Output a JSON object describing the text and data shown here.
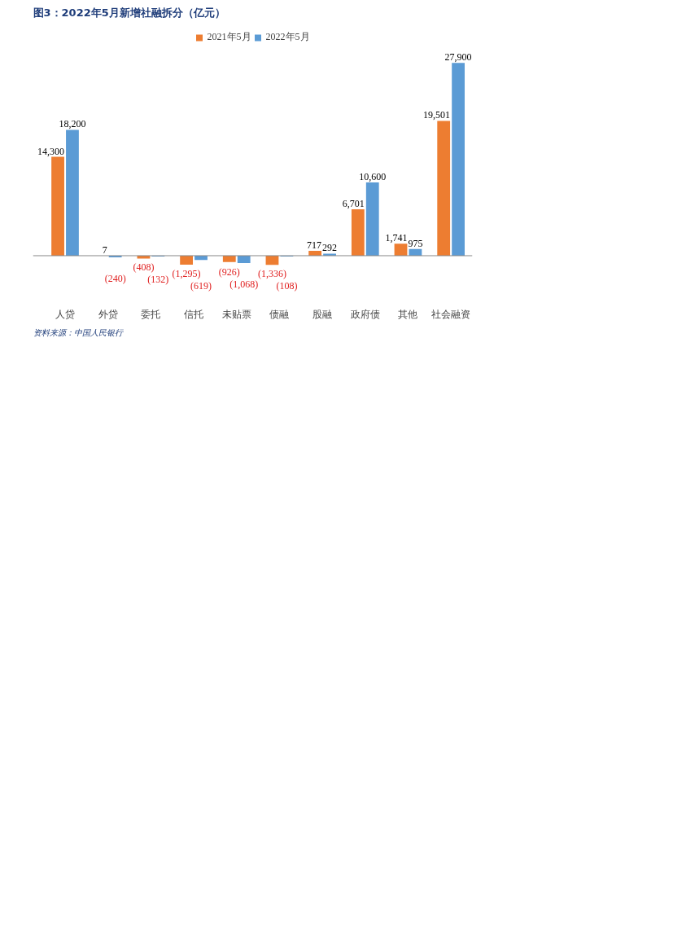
{
  "chart_data": {
    "type": "bar",
    "title": "图3：2022年5月新增社融拆分（亿元）",
    "categories": [
      "人贷",
      "外贷",
      "委托",
      "信托",
      "未贴票",
      "债融",
      "股融",
      "政府债",
      "其他",
      "社会融资"
    ],
    "series": [
      {
        "name": "2021年5月",
        "color": "#ed7d31",
        "values": [
          14300,
          7,
          -408,
          -1295,
          -926,
          -1336,
          717,
          6701,
          1741,
          19501
        ],
        "value_labels": [
          "14,300",
          "7",
          "(408)",
          "(1,295)",
          "(926)",
          "(1,336)",
          "717",
          "6,701",
          "1,741",
          "19,501"
        ]
      },
      {
        "name": "2022年5月",
        "color": "#5b9bd5",
        "values": [
          18200,
          -240,
          -132,
          -619,
          -1068,
          -108,
          292,
          10600,
          975,
          27900
        ],
        "value_labels": [
          "18,200",
          "(240)",
          "(132)",
          "(619)",
          "(1,068)",
          "(108)",
          "292",
          "10,600",
          "975",
          "27,900"
        ]
      }
    ],
    "legend": "top",
    "annotations": [
      "资料来源：中国人民银行"
    ]
  }
}
